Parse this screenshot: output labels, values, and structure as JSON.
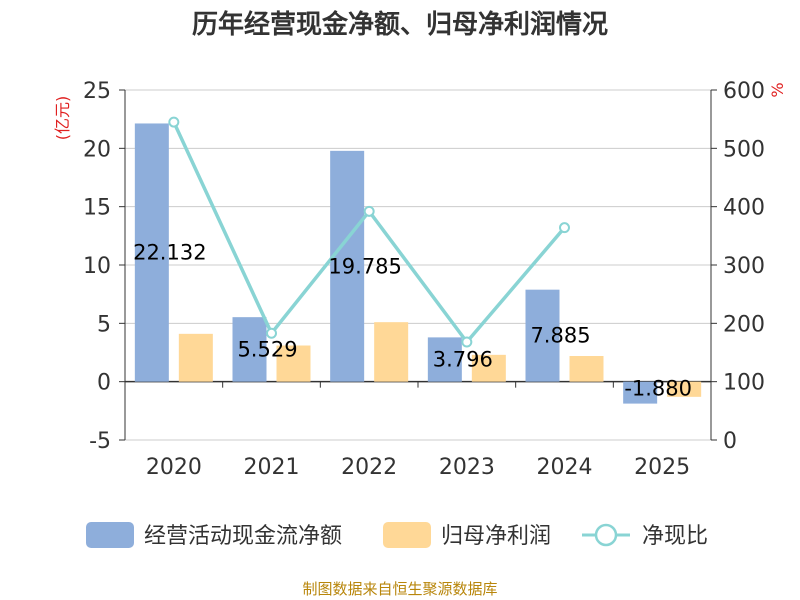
{
  "chart_data": {
    "type": "bar",
    "title": "历年经营现金净额、归母净利润情况",
    "categories": [
      "2020",
      "2021",
      "2022",
      "2023",
      "2024",
      "2025"
    ],
    "series": [
      {
        "name": "经营活动现金流净额",
        "type": "bar",
        "axis": "left",
        "color": "#8eaedb",
        "values": [
          22.132,
          5.529,
          19.785,
          3.796,
          7.885,
          -1.88
        ],
        "labels": [
          "22.132",
          "5.529",
          "19.785",
          "3.796",
          "7.885",
          "-1.880"
        ]
      },
      {
        "name": "归母净利润",
        "type": "bar",
        "axis": "left",
        "color": "#ffd897",
        "values": [
          4.1,
          3.1,
          5.1,
          2.3,
          2.2,
          -1.3
        ]
      },
      {
        "name": "净现比",
        "type": "line",
        "axis": "right",
        "color": "#89d4d4",
        "values": [
          545,
          183,
          392,
          168,
          364,
          null
        ]
      }
    ],
    "y_left": {
      "unit_label": "(亿元)",
      "min": -5,
      "max": 25,
      "ticks": [
        "25",
        "20",
        "15",
        "10",
        "5",
        "0",
        "-5"
      ]
    },
    "y_right": {
      "unit_label": "%",
      "min": 0,
      "max": 600,
      "ticks": [
        "600",
        "500",
        "400",
        "300",
        "200",
        "100",
        "0"
      ]
    },
    "grid": true,
    "legend_position": "bottom"
  },
  "source_text": "制图数据来自恒生聚源数据库"
}
